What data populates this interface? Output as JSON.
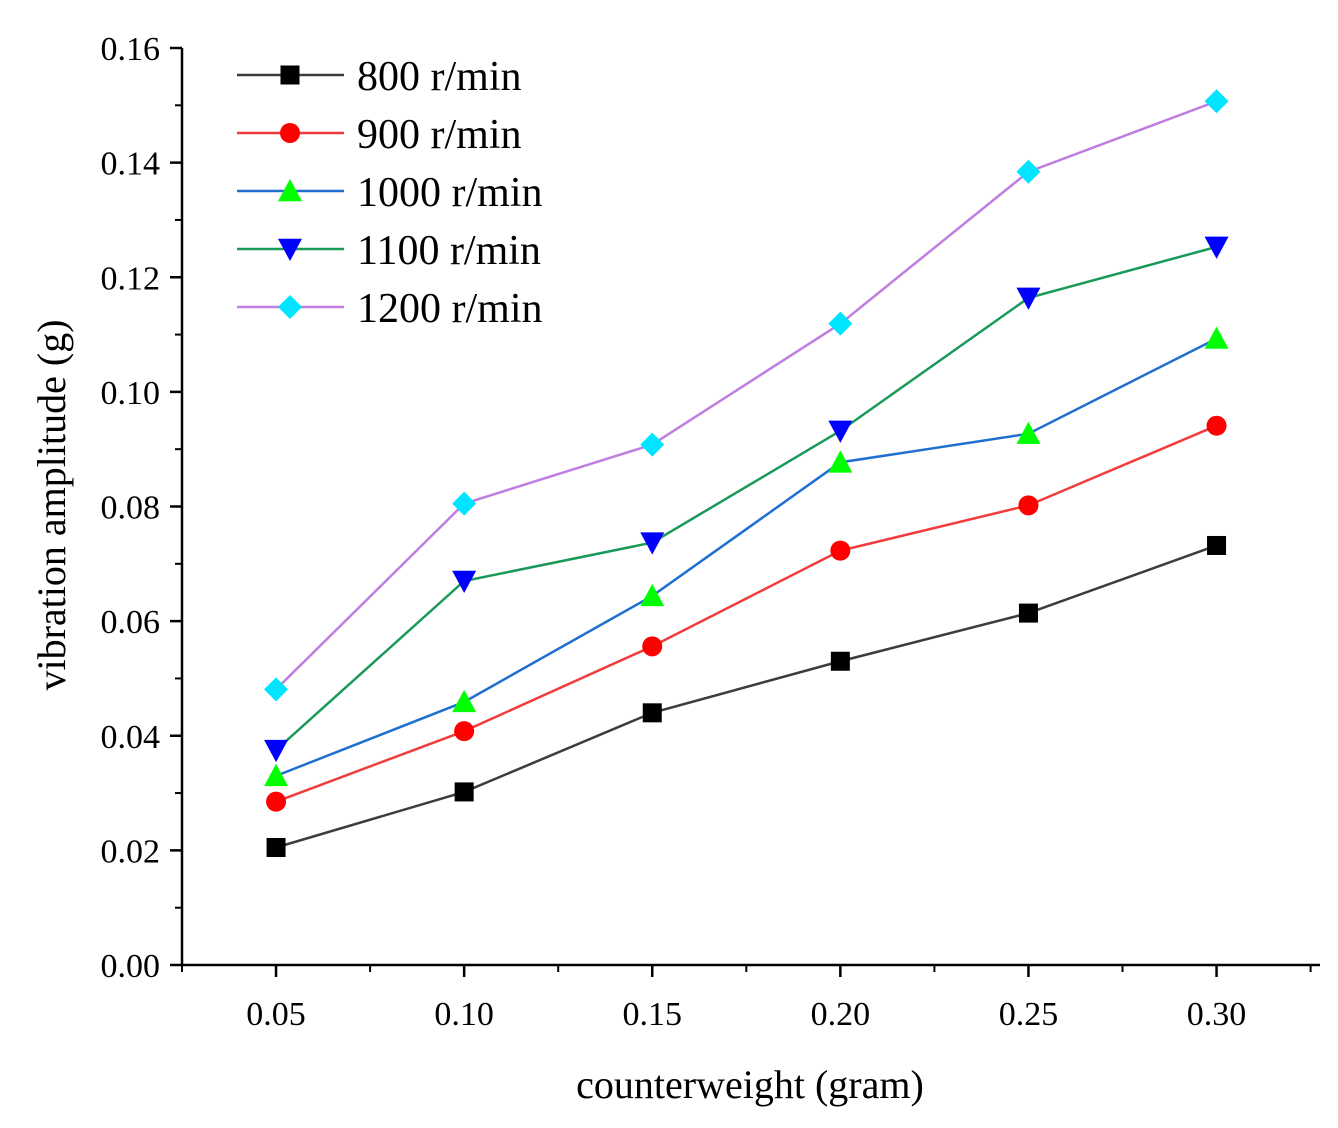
{
  "chart_data": {
    "type": "line",
    "title": "",
    "xlabel": "counterweight (gram)",
    "ylabel": "vibration amplitude (g)",
    "x": [
      0.05,
      0.1,
      0.15,
      0.2,
      0.25,
      0.3
    ],
    "xlim": [
      0.025,
      0.3275
    ],
    "ylim": [
      0,
      0.16
    ],
    "x_ticks": [
      0.05,
      0.1,
      0.15,
      0.2,
      0.25,
      0.3
    ],
    "x_tick_labels": [
      "0.05",
      "0.10",
      "0.15",
      "0.20",
      "0.25",
      "0.30"
    ],
    "y_ticks": [
      0,
      0.02,
      0.04,
      0.06,
      0.08,
      0.1,
      0.12,
      0.14,
      0.16
    ],
    "y_tick_labels": [
      "0.00",
      "0.02",
      "0.04",
      "0.06",
      "0.08",
      "0.10",
      "0.12",
      "0.14",
      "0.16"
    ],
    "grid": false,
    "legend_position": "top-left",
    "series": [
      {
        "name": "800 r/min",
        "line_color": "#3c3c3c",
        "marker_color": "#000000",
        "marker": "square",
        "values": [
          0.0205,
          0.0302,
          0.044,
          0.053,
          0.0614,
          0.0732
        ]
      },
      {
        "name": "900 r/min",
        "line_color": "#f03c3c",
        "marker_color": "#ff0000",
        "marker": "circle",
        "values": [
          0.0285,
          0.0408,
          0.0556,
          0.0723,
          0.0802,
          0.0941
        ]
      },
      {
        "name": "1000 r/min",
        "line_color": "#1f6fd1",
        "marker_color": "#00ff00",
        "marker": "triangle-up",
        "values": [
          0.033,
          0.0459,
          0.0644,
          0.0877,
          0.0927,
          0.1093
        ]
      },
      {
        "name": "1100 r/min",
        "line_color": "#1a9a5a",
        "marker_color": "#0000ff",
        "marker": "triangle-down",
        "values": [
          0.0375,
          0.067,
          0.0737,
          0.0932,
          0.1164,
          0.1253
        ]
      },
      {
        "name": "1200 r/min",
        "line_color": "#c07ee0",
        "marker_color": "#00e5ff",
        "marker": "diamond",
        "values": [
          0.0481,
          0.0805,
          0.0908,
          0.1119,
          0.1384,
          0.1507
        ]
      }
    ]
  }
}
